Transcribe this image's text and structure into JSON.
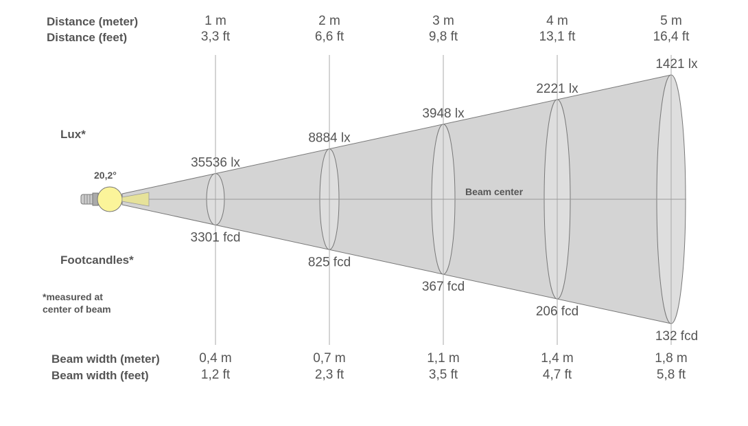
{
  "labels": {
    "distance_meter": "Distance (meter)",
    "distance_feet": "Distance (feet)",
    "lux": "Lux*",
    "footcandles": "Footcandles*",
    "note_line1": "*measured at",
    "note_line2": "center of beam",
    "beam_width_meter": "Beam width (meter)",
    "beam_width_feet": "Beam width (feet)",
    "beam_center": "Beam center",
    "beam_angle": "20,2°"
  },
  "columns": [
    {
      "distance_m": "1 m",
      "distance_ft": "3,3 ft",
      "lux": "35536 lx",
      "fcd": "3301 fcd",
      "width_m": "0,4 m",
      "width_ft": "1,2 ft"
    },
    {
      "distance_m": "2 m",
      "distance_ft": "6,6 ft",
      "lux": "8884 lx",
      "fcd": "825 fcd",
      "width_m": "0,7 m",
      "width_ft": "2,3 ft"
    },
    {
      "distance_m": "3 m",
      "distance_ft": "9,8 ft",
      "lux": "3948 lx",
      "fcd": "367 fcd",
      "width_m": "1,1 m",
      "width_ft": "3,5 ft"
    },
    {
      "distance_m": "4 m",
      "distance_ft": "13,1 ft",
      "lux": "2221 lx",
      "fcd": "206 fcd",
      "width_m": "1,4 m",
      "width_ft": "4,7 ft"
    },
    {
      "distance_m": "5 m",
      "distance_ft": "16,4 ft",
      "lux": "1421 lx",
      "fcd": "132 fcd",
      "width_m": "1,8 m",
      "width_ft": "5,8 ft"
    }
  ],
  "colors": {
    "cone": "#d4d4d4",
    "ellipse": "#dedede",
    "bulb": "#fbf49a",
    "text": "#555555",
    "lines": "#a0a0a0"
  }
}
